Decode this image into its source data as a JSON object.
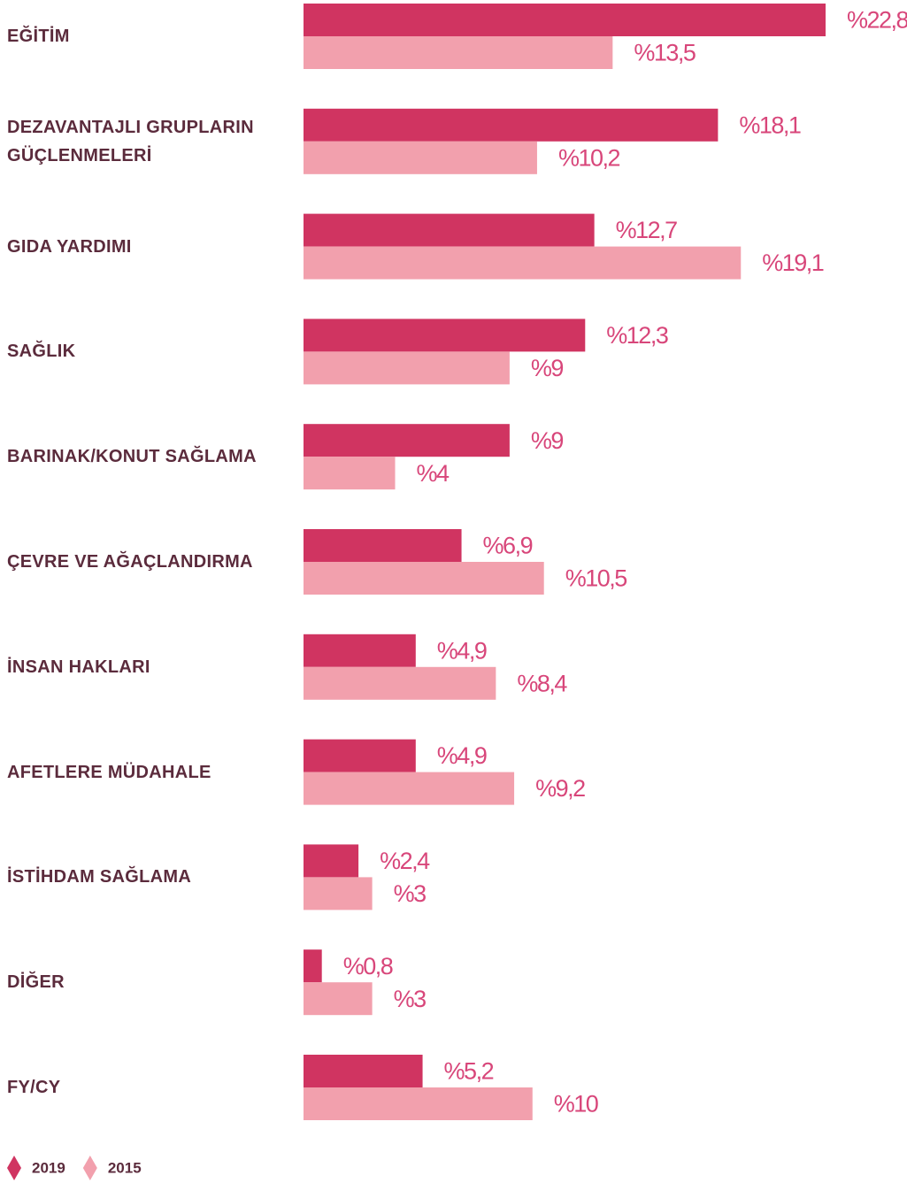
{
  "chart_data": {
    "type": "bar",
    "orientation": "horizontal",
    "categories": [
      "EĞİTİM",
      "DEZAVANTAJLI GRUPLARIN GÜÇLENMELERİ",
      "GIDA YARDIMI",
      "SAĞLIK",
      "BARINAK/KONUT SAĞLAMA",
      "ÇEVRE VE AĞAÇLANDIRMA",
      "İNSAN HAKLARI",
      "AFETLERE MÜDAHALE",
      "İSTİHDAM SAĞLAMA",
      "DİĞER",
      "FY/CY"
    ],
    "series": [
      {
        "name": "2019",
        "color": "#d03461",
        "values": [
          22.8,
          18.1,
          12.7,
          12.3,
          9,
          6.9,
          4.9,
          4.9,
          2.4,
          0.8,
          5.2
        ],
        "value_labels": [
          "%22,8",
          "%18,1",
          "%12,7",
          "%12,3",
          "%9",
          "%6,9",
          "%4,9",
          "%4,9",
          "%2,4",
          "%0,8",
          "%5,2"
        ]
      },
      {
        "name": "2015",
        "color": "#f2a0ad",
        "values": [
          13.5,
          10.2,
          19.1,
          9,
          4,
          10.5,
          8.4,
          9.2,
          3,
          3,
          10
        ],
        "value_labels": [
          "%13,5",
          "%10,2",
          "%19,1",
          "%9",
          "%4",
          "%10,5",
          "%8,4",
          "%9,2",
          "%3",
          "%3",
          "%10"
        ]
      }
    ]
  }
}
